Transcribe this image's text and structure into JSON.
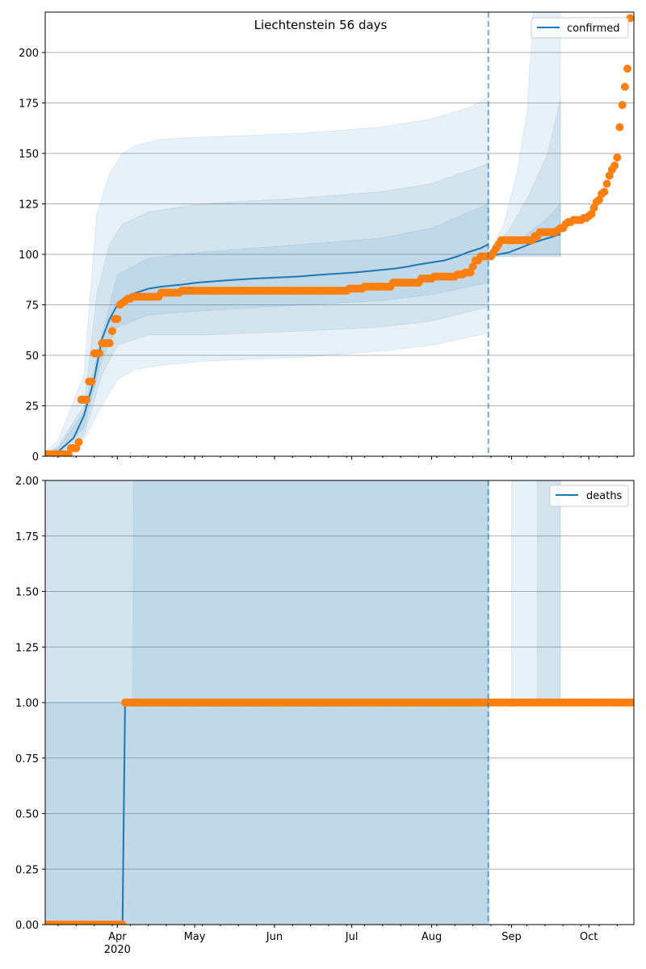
{
  "chart_data": [
    {
      "type": "line",
      "title": "Liechtenstein 56 days",
      "x_unit": "days since 2020-03-04",
      "start_date": "2020-03-04",
      "xlim": [
        0,
        228.5
      ],
      "ylim": [
        0,
        220
      ],
      "yticks": [
        0,
        25,
        50,
        75,
        100,
        125,
        150,
        175,
        200
      ],
      "ytick_labels": [
        "0",
        "25",
        "50",
        "75",
        "100",
        "125",
        "150",
        "175",
        "200"
      ],
      "grid": "horizontal",
      "legend": {
        "position": "top-right",
        "entries": [
          "confirmed"
        ]
      },
      "forecast_start_day": 172,
      "model_line": [
        [
          3,
          0
        ],
        [
          11,
          9
        ],
        [
          15,
          20
        ],
        [
          19,
          38
        ],
        [
          22,
          58
        ],
        [
          25,
          68
        ],
        [
          28,
          75
        ],
        [
          33,
          80
        ],
        [
          40,
          83
        ],
        [
          45,
          84
        ],
        [
          53,
          85
        ],
        [
          59,
          86
        ],
        [
          69,
          87
        ],
        [
          81,
          88
        ],
        [
          98,
          89
        ],
        [
          108,
          90
        ],
        [
          120,
          91
        ],
        [
          128,
          92
        ],
        [
          136,
          93
        ],
        [
          141,
          94
        ],
        [
          145,
          95
        ],
        [
          150,
          96
        ],
        [
          155,
          97
        ],
        [
          160,
          99
        ],
        [
          164,
          101
        ],
        [
          169,
          103
        ],
        [
          172,
          105
        ]
      ],
      "forecast_line": [
        [
          172,
          99
        ],
        [
          180,
          101
        ],
        [
          190,
          106
        ],
        [
          200,
          110
        ]
      ],
      "bands": [
        {
          "name": "outer",
          "upper": [
            [
              0,
              2
            ],
            [
              5,
              8
            ],
            [
              15,
              40
            ],
            [
              20,
              120
            ],
            [
              25,
              140
            ],
            [
              30,
              150
            ],
            [
              35,
              154
            ],
            [
              45,
              157
            ],
            [
              60,
              158
            ],
            [
              100,
              160
            ],
            [
              130,
              163
            ],
            [
              150,
              167
            ],
            [
              165,
              173
            ],
            [
              172,
              178
            ]
          ],
          "lower": [
            [
              0,
              0
            ],
            [
              5,
              0
            ],
            [
              15,
              8
            ],
            [
              22,
              25
            ],
            [
              28,
              38
            ],
            [
              35,
              43
            ],
            [
              45,
              45
            ],
            [
              60,
              47
            ],
            [
              100,
              49
            ],
            [
              130,
              52
            ],
            [
              150,
              55
            ],
            [
              172,
              61
            ]
          ]
        },
        {
          "name": "middle",
          "upper": [
            [
              0,
              1
            ],
            [
              5,
              5
            ],
            [
              15,
              25
            ],
            [
              20,
              80
            ],
            [
              25,
              105
            ],
            [
              30,
              115
            ],
            [
              40,
              121
            ],
            [
              60,
              125
            ],
            [
              100,
              128
            ],
            [
              130,
              131
            ],
            [
              150,
              135
            ],
            [
              172,
              145
            ]
          ],
          "lower": [
            [
              0,
              0
            ],
            [
              5,
              1
            ],
            [
              15,
              10
            ],
            [
              22,
              40
            ],
            [
              28,
              55
            ],
            [
              40,
              60
            ],
            [
              60,
              60
            ],
            [
              100,
              62
            ],
            [
              130,
              64
            ],
            [
              150,
              67
            ],
            [
              172,
              74
            ]
          ]
        },
        {
          "name": "inner",
          "upper": [
            [
              0,
              1
            ],
            [
              5,
              4
            ],
            [
              15,
              22
            ],
            [
              22,
              60
            ],
            [
              28,
              90
            ],
            [
              40,
              98
            ],
            [
              60,
              101
            ],
            [
              100,
              105
            ],
            [
              130,
              108
            ],
            [
              150,
              113
            ],
            [
              172,
              125
            ]
          ],
          "lower": [
            [
              0,
              0
            ],
            [
              5,
              2
            ],
            [
              15,
              14
            ],
            [
              22,
              48
            ],
            [
              28,
              64
            ],
            [
              40,
              70
            ],
            [
              60,
              72
            ],
            [
              100,
              75
            ],
            [
              130,
              77
            ],
            [
              150,
              80
            ],
            [
              172,
              86
            ]
          ]
        }
      ],
      "forecast_bands": [
        {
          "name": "outer",
          "upper": [
            [
              172,
              100
            ],
            [
              178,
              115
            ],
            [
              183,
              140
            ],
            [
              187,
              170
            ],
            [
              190,
              230
            ],
            [
              200,
              300
            ]
          ],
          "lower": [
            [
              172,
              99
            ],
            [
              200,
              99
            ]
          ]
        },
        {
          "name": "middle",
          "upper": [
            [
              172,
              100
            ],
            [
              180,
              112
            ],
            [
              188,
              130
            ],
            [
              195,
              150
            ],
            [
              200,
              177
            ]
          ],
          "lower": [
            [
              172,
              99
            ],
            [
              200,
              99
            ]
          ]
        },
        {
          "name": "inner",
          "upper": [
            [
              172,
              100
            ],
            [
              185,
              108
            ],
            [
              195,
              118
            ],
            [
              200,
              125
            ]
          ],
          "lower": [
            [
              172,
              100
            ],
            [
              200,
              100
            ]
          ]
        }
      ],
      "observed": [
        [
          0,
          1
        ],
        [
          10,
          4
        ],
        [
          13,
          7
        ],
        [
          14,
          28
        ],
        [
          17,
          37
        ],
        [
          19,
          51
        ],
        [
          22,
          56
        ],
        [
          26,
          62
        ],
        [
          27,
          68
        ],
        [
          29,
          75
        ],
        [
          30,
          76
        ],
        [
          31,
          77
        ],
        [
          32,
          78
        ],
        [
          34,
          79
        ],
        [
          45,
          81
        ],
        [
          53,
          82
        ],
        [
          118,
          83
        ],
        [
          124,
          84
        ],
        [
          135,
          86
        ],
        [
          146,
          88
        ],
        [
          151,
          89
        ],
        [
          160,
          90
        ],
        [
          163,
          91
        ],
        [
          166,
          94
        ],
        [
          167,
          97
        ],
        [
          169,
          99
        ],
        [
          174,
          101
        ],
        [
          175,
          103
        ],
        [
          176,
          105
        ],
        [
          177,
          107
        ],
        [
          190,
          109
        ],
        [
          192,
          111
        ],
        [
          199,
          112
        ],
        [
          200,
          113
        ],
        [
          202,
          115
        ],
        [
          203,
          116
        ],
        [
          205,
          117
        ],
        [
          209,
          118
        ],
        [
          211,
          119
        ],
        [
          212,
          120
        ],
        [
          213,
          123
        ],
        [
          214,
          126
        ],
        [
          215,
          127
        ],
        [
          216,
          130
        ],
        [
          217,
          131
        ],
        [
          218,
          135
        ],
        [
          219,
          139
        ],
        [
          220,
          142
        ],
        [
          221,
          144
        ],
        [
          222,
          148
        ],
        [
          223,
          163
        ],
        [
          224,
          174
        ],
        [
          225,
          183
        ],
        [
          226,
          192
        ],
        [
          227,
          217
        ]
      ],
      "observed_end_day": 227
    },
    {
      "type": "line",
      "title": "",
      "x_unit": "days since 2020-03-04",
      "xlim": [
        0,
        228.5
      ],
      "ylim": [
        0,
        2
      ],
      "yticks": [
        0,
        0.25,
        0.5,
        0.75,
        1,
        1.25,
        1.5,
        1.75,
        2
      ],
      "ytick_labels": [
        "0.00",
        "0.25",
        "0.50",
        "0.75",
        "1.00",
        "1.25",
        "1.50",
        "1.75",
        "2.00"
      ],
      "grid": "horizontal",
      "legend": {
        "position": "top-right",
        "entries": [
          "deaths"
        ]
      },
      "forecast_start_day": 172,
      "model_line": [
        [
          0,
          0
        ],
        [
          30,
          0
        ],
        [
          31,
          1
        ],
        [
          172,
          1
        ]
      ],
      "forecast_line": [],
      "bands": [
        {
          "name": "outer",
          "upper": [
            [
              0,
              5
            ],
            [
              172,
              5
            ]
          ],
          "lower": [
            [
              0,
              0
            ],
            [
              172,
              0
            ]
          ]
        },
        {
          "name": "middle",
          "upper": [
            [
              0,
              5
            ],
            [
              172,
              5
            ]
          ],
          "lower": [
            [
              0,
              0
            ],
            [
              172,
              0
            ]
          ]
        },
        {
          "name": "inner",
          "upper": [
            [
              0,
              1
            ],
            [
              34,
              1
            ],
            [
              35,
              5
            ],
            [
              172,
              5
            ]
          ],
          "lower": [
            [
              0,
              0
            ],
            [
              172,
              0
            ]
          ]
        }
      ],
      "forecast_bands": [
        {
          "name": "outer",
          "upper": [
            [
              181,
              5
            ],
            [
              200,
              5
            ]
          ],
          "lower": [
            [
              181,
              1
            ],
            [
              200,
              1
            ]
          ]
        },
        {
          "name": "middle",
          "upper": [
            [
              191,
              5
            ],
            [
              200,
              5
            ]
          ],
          "lower": [
            [
              191,
              1
            ],
            [
              200,
              1
            ]
          ]
        }
      ],
      "observed": [
        [
          0,
          0
        ],
        [
          31,
          1
        ]
      ],
      "observed_end_day": 228
    }
  ],
  "x_axis": {
    "month_ticks": [
      {
        "day": 28,
        "label": "Apr",
        "sublabel": "2020"
      },
      {
        "day": 58,
        "label": "May"
      },
      {
        "day": 89,
        "label": "Jun"
      },
      {
        "day": 119,
        "label": "Jul"
      },
      {
        "day": 150,
        "label": "Aug"
      },
      {
        "day": 181,
        "label": "Sep"
      },
      {
        "day": 211,
        "label": "Oct"
      }
    ],
    "minor_tick_start_day": 5,
    "minor_tick_step_days": 7
  },
  "colors": {
    "model": "#1f77b4",
    "observed": "#ff7f0e",
    "grid": "#b0b0b0",
    "band": "#1f77b4"
  }
}
